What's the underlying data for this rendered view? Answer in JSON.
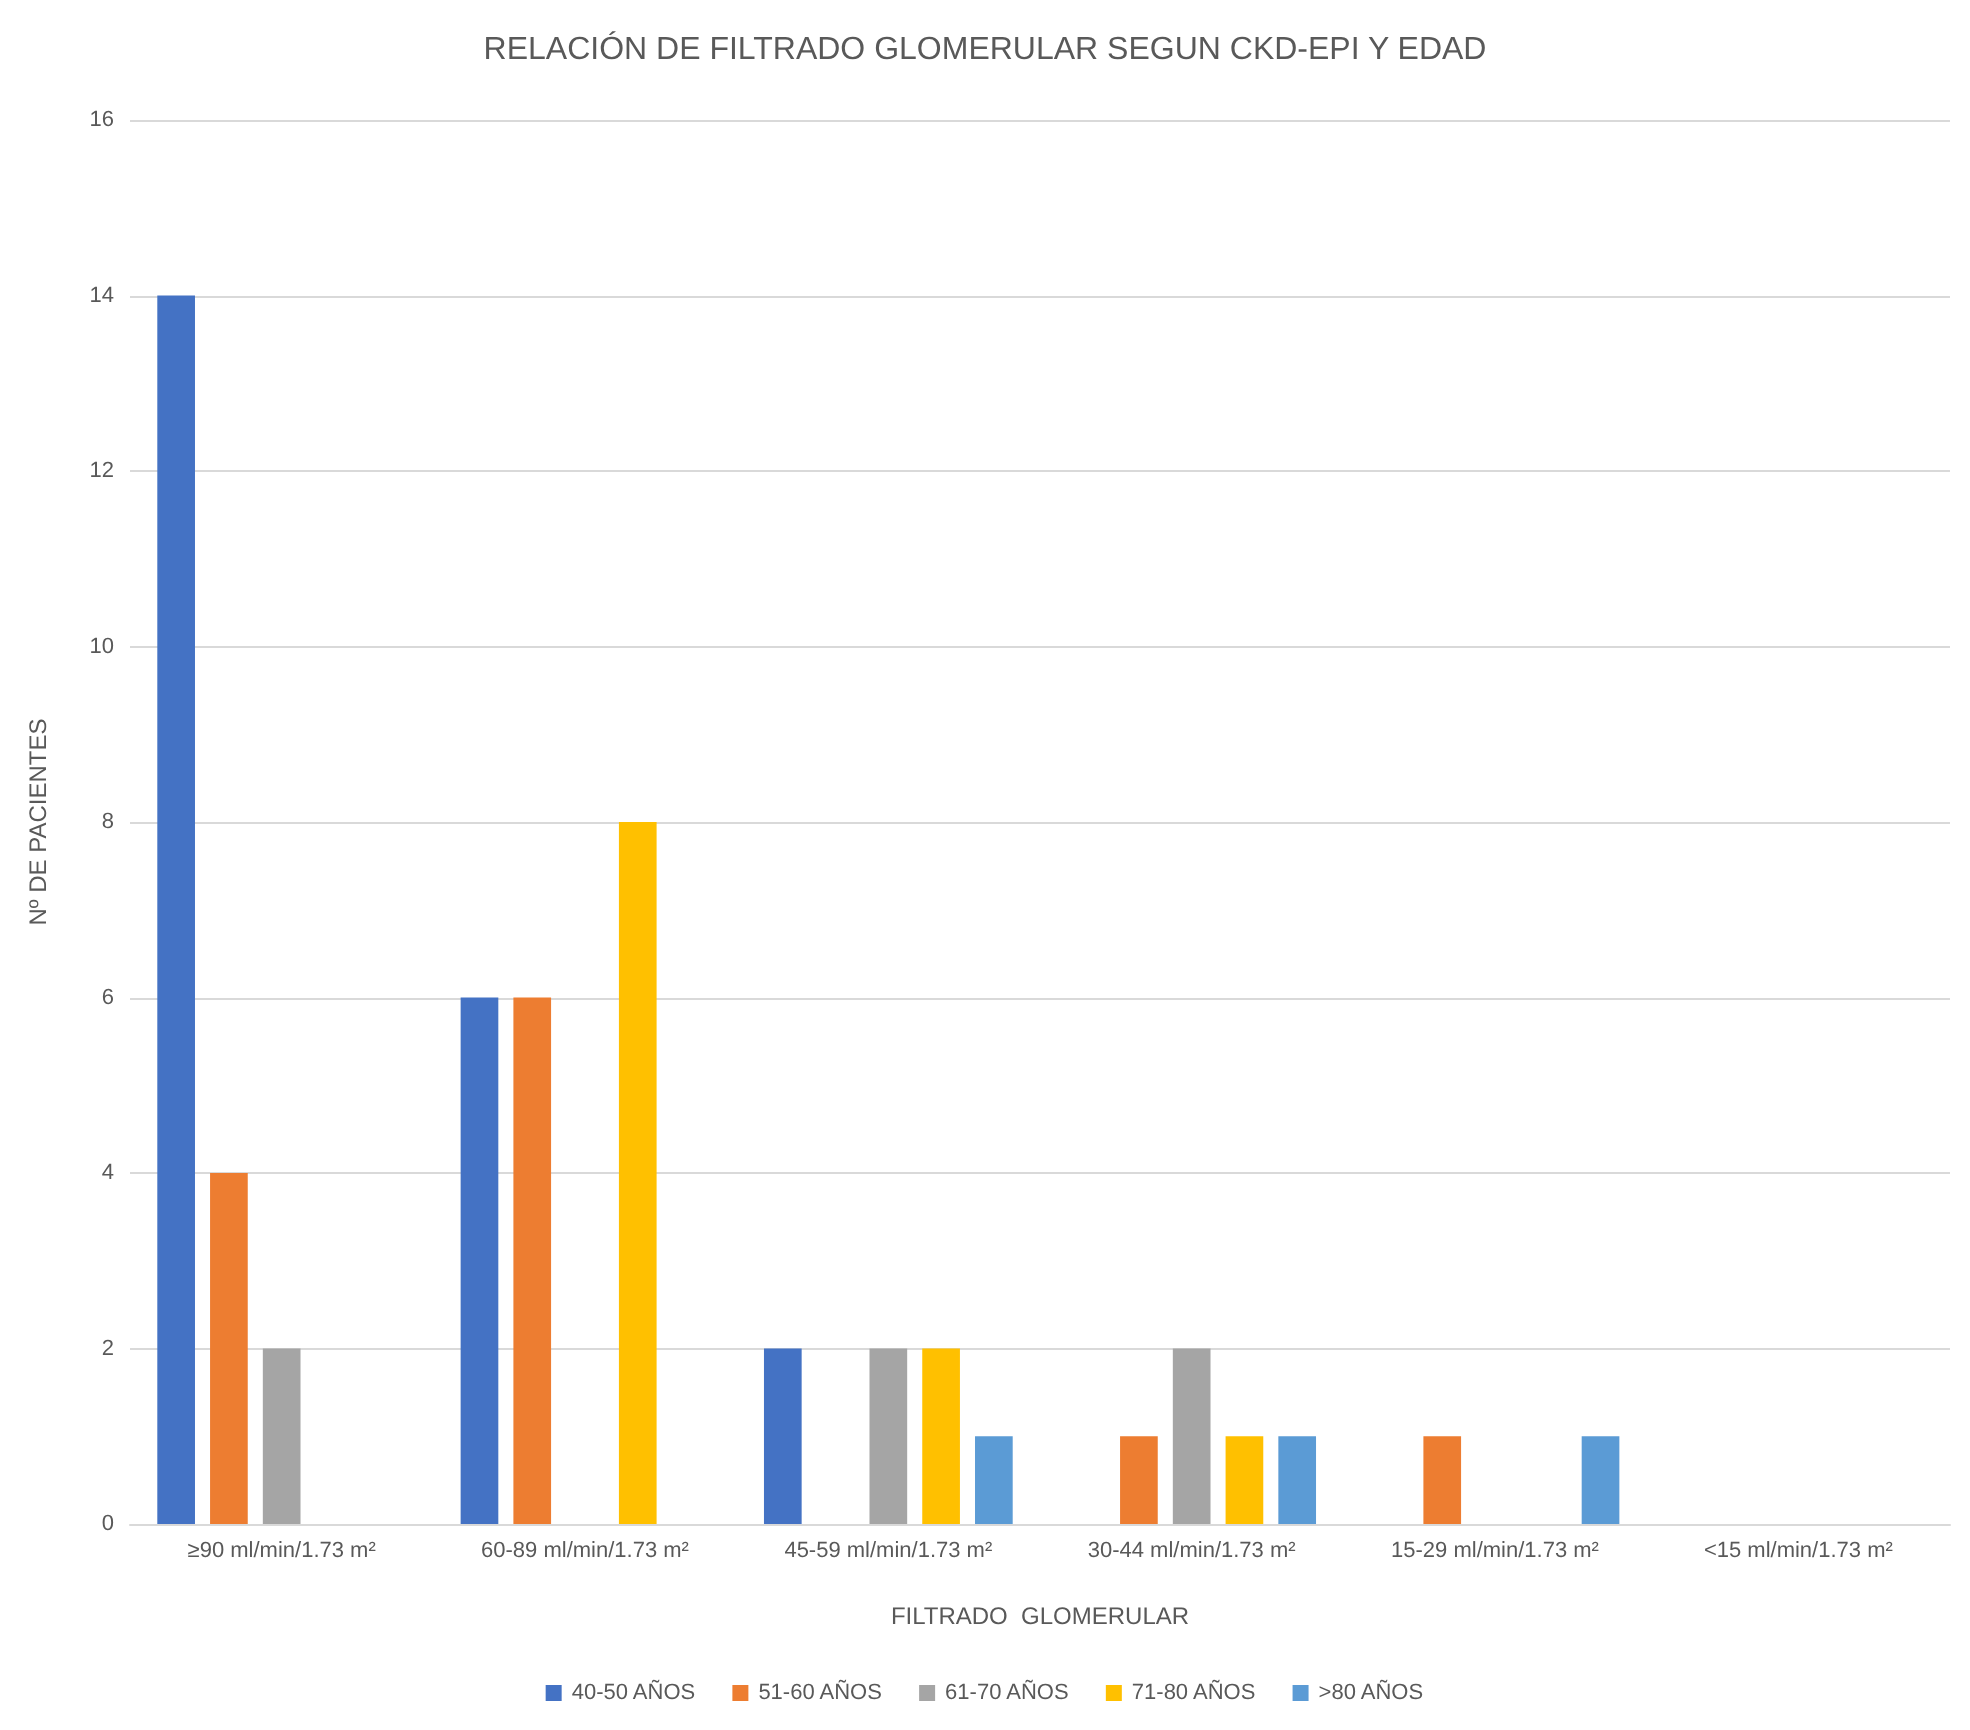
{
  "chart_data": {
    "type": "bar",
    "title": "RELACIÓN DE FILTRADO GLOMERULAR SEGUN CKD-EPI Y EDAD",
    "xlabel": "FILTRADO  GLOMERULAR",
    "ylabel": "Nº DE PACIENTES",
    "categories": [
      "≥90 ml/min/1.73 m²",
      "60-89 ml/min/1.73 m²",
      "45-59 ml/min/1.73 m²",
      "30-44 ml/min/1.73 m²",
      "15-29 ml/min/1.73 m²",
      "<15 ml/min/1.73 m²"
    ],
    "series": [
      {
        "name": "40-50 AÑOS",
        "color": "#4472c4",
        "values": [
          14,
          6,
          2,
          0,
          0,
          0
        ]
      },
      {
        "name": "51-60 AÑOS",
        "color": "#ed7d31",
        "values": [
          4,
          6,
          0,
          1,
          1,
          0
        ]
      },
      {
        "name": "61-70 AÑOS",
        "color": "#a5a5a5",
        "values": [
          2,
          0,
          2,
          2,
          0,
          0
        ]
      },
      {
        "name": "71-80 AÑOS",
        "color": "#ffc000",
        "values": [
          0,
          8,
          2,
          1,
          0,
          0
        ]
      },
      {
        "name": ">80 AÑOS",
        "color": "#5b9bd5",
        "values": [
          0,
          0,
          1,
          1,
          1,
          0
        ]
      }
    ],
    "ylim": [
      0,
      16
    ],
    "yticks": [
      0,
      2,
      4,
      6,
      8,
      10,
      12,
      14,
      16
    ],
    "grid": "y",
    "legend": "bottom"
  }
}
